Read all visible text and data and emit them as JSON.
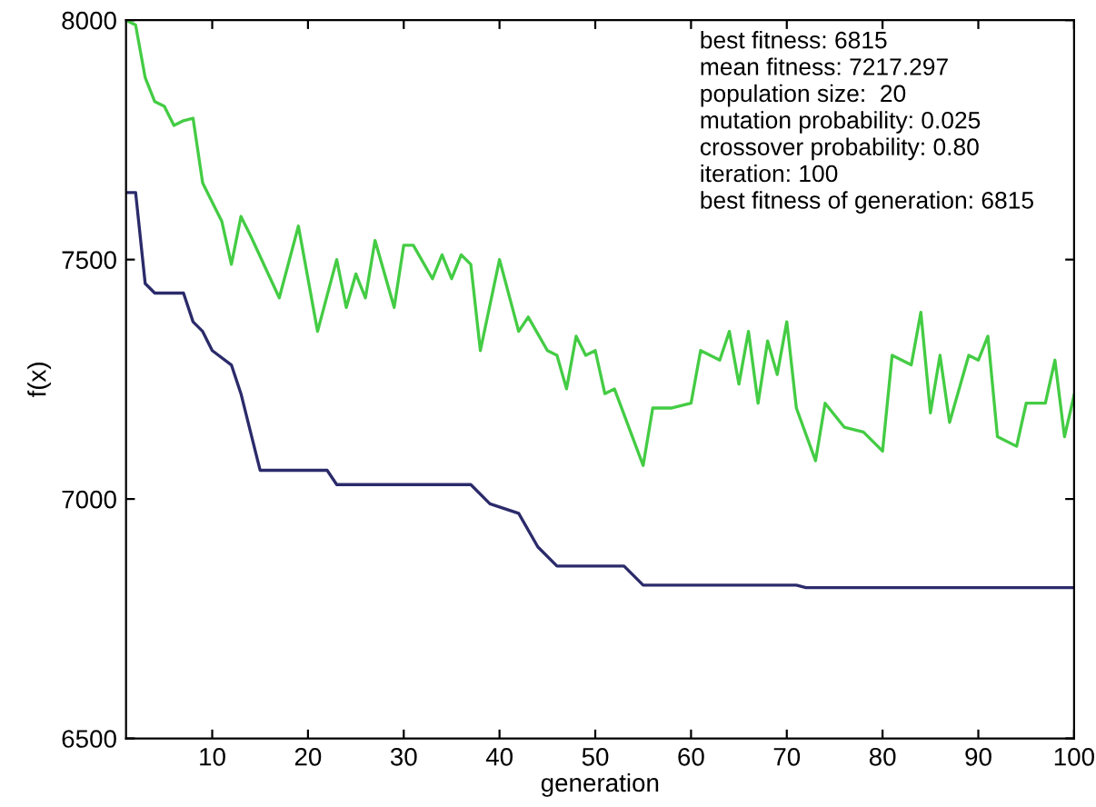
{
  "chart_data": {
    "type": "line",
    "xlabel": "generation",
    "ylabel": "f(x)",
    "xlim": [
      1,
      100
    ],
    "ylim": [
      6500,
      8000
    ],
    "xticks": [
      10,
      20,
      30,
      40,
      50,
      60,
      70,
      80,
      90,
      100
    ],
    "yticks": [
      6500,
      7000,
      7500,
      8000
    ],
    "grid": false,
    "legend": false,
    "marker": "none",
    "line_style": "solid",
    "series": [
      {
        "color": "#44cc44",
        "x": [
          1,
          2,
          3,
          4,
          5,
          6,
          7,
          8,
          9,
          10,
          11,
          12,
          13,
          14,
          17,
          19,
          21,
          23,
          24,
          25,
          26,
          27,
          29,
          30,
          31,
          33,
          34,
          35,
          36,
          37,
          38,
          40,
          42,
          43,
          45,
          46,
          47,
          48,
          49,
          50,
          51,
          52,
          55,
          56,
          58,
          60,
          61,
          63,
          64,
          65,
          66,
          67,
          68,
          69,
          70,
          71,
          73,
          74,
          76,
          78,
          80,
          81,
          83,
          84,
          85,
          86,
          87,
          89,
          90,
          91,
          92,
          94,
          95,
          97,
          98,
          99,
          100
        ],
        "values": [
          8000,
          7990,
          7880,
          7830,
          7820,
          7780,
          7790,
          7795,
          7660,
          7620,
          7580,
          7490,
          7590,
          7550,
          7420,
          7570,
          7350,
          7500,
          7400,
          7470,
          7420,
          7540,
          7400,
          7530,
          7530,
          7460,
          7510,
          7460,
          7510,
          7490,
          7310,
          7500,
          7350,
          7380,
          7310,
          7300,
          7230,
          7340,
          7300,
          7310,
          7220,
          7230,
          7070,
          7190,
          7190,
          7200,
          7310,
          7290,
          7350,
          7240,
          7350,
          7200,
          7330,
          7260,
          7370,
          7190,
          7080,
          7200,
          7150,
          7140,
          7100,
          7300,
          7280,
          7390,
          7180,
          7300,
          7160,
          7300,
          7290,
          7340,
          7130,
          7110,
          7200,
          7200,
          7290,
          7130,
          7217
        ]
      },
      {
        "color": "#2b2b6b",
        "x": [
          1,
          2,
          3,
          4,
          7,
          8,
          9,
          10,
          12,
          13,
          14,
          15,
          22,
          23,
          37,
          39,
          42,
          44,
          46,
          53,
          55,
          71,
          72,
          100
        ],
        "values": [
          7640,
          7640,
          7450,
          7430,
          7430,
          7370,
          7350,
          7310,
          7280,
          7220,
          7140,
          7060,
          7060,
          7030,
          7030,
          6990,
          6970,
          6900,
          6860,
          6860,
          6820,
          6820,
          6815,
          6815
        ]
      }
    ],
    "annotations": [
      "best fitness: 6815",
      "mean fitness: 7217.297",
      "population size:  20",
      "mutation probability: 0.025",
      "crossover probability: 0.80",
      "iteration: 100",
      "best fitness of generation: 6815"
    ]
  }
}
